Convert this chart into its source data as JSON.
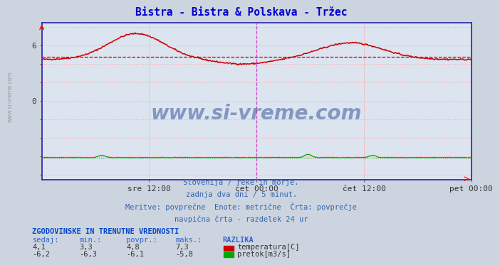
{
  "title": "Bistra - Bistra & Polskava - Tržec",
  "title_color": "#0000cc",
  "bg_color": "#ccd4e0",
  "plot_bg_color": "#dce4f0",
  "grid_color": "#ffaaaa",
  "x_tick_labels": [
    "sre 12:00",
    "čet 00:00",
    "čet 12:00",
    "pet 00:00"
  ],
  "x_tick_positions": [
    0.25,
    0.5,
    0.75,
    1.0
  ],
  "ylim": [
    -8.5,
    8.5
  ],
  "ytick_vals": [
    0,
    6
  ],
  "temp_color": "#cc0000",
  "flow_color": "#00aa00",
  "avg_temp": 4.8,
  "avg_flow": -6.1,
  "vline_magenta": [
    0.5,
    1.0
  ],
  "border_color": "#2222aa",
  "watermark": "www.si-vreme.com",
  "watermark_color": "#1a3a8a",
  "sub_text1": "Slovenija / reke in morje.",
  "sub_text2": "zadnja dva dni / 5 minut.",
  "sub_text3": "Meritve: povprečne  Enote: metrične  Črta: povprečje",
  "sub_text4": "navpična črta - razdelek 24 ur",
  "table_header": "ZGODOVINSKE IN TRENUTNE VREDNOSTI",
  "col_headers": [
    "sedaj:",
    "min.:",
    "povpr.:",
    "maks.:",
    "RAZLIKA"
  ],
  "row1_vals": [
    "4,1",
    "3,3",
    "4,8",
    "7,3"
  ],
  "row2_vals": [
    "-6,2",
    "-6,3",
    "-6,1",
    "-5,8"
  ],
  "legend_temp": "temperatura[C]",
  "legend_flow": "pretok[m3/s]",
  "text_color": "#3366aa",
  "num_points": 576,
  "left_label": "www.si-vreme.com"
}
